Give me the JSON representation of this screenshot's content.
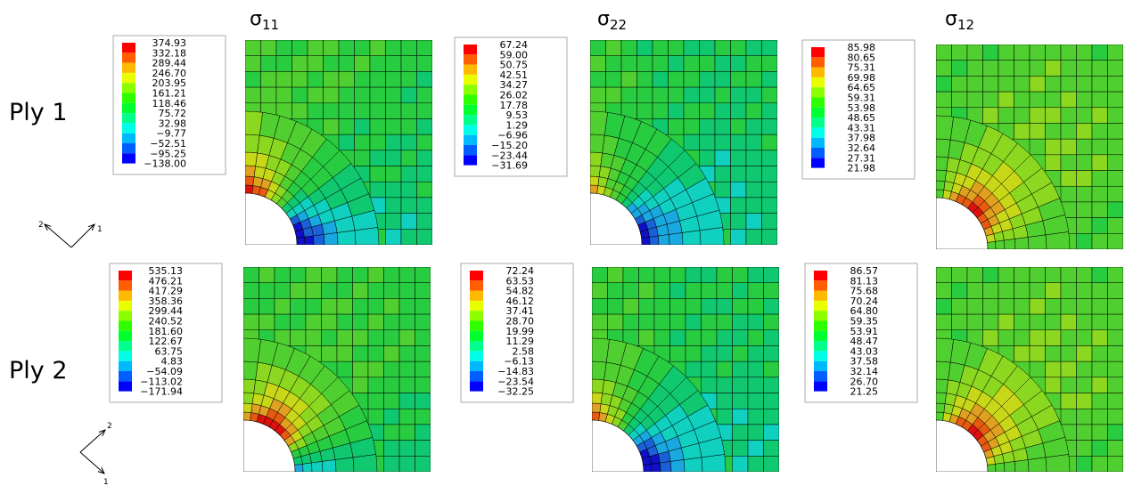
{
  "headers": [
    {
      "symbol": "σ",
      "subscript": "11"
    },
    {
      "symbol": "σ",
      "subscript": "22"
    },
    {
      "symbol": "σ",
      "subscript": "12"
    }
  ],
  "rows": [
    {
      "label": "Ply 1",
      "legends": [
        [
          "374.93",
          "332.18",
          "289.44",
          "246.70",
          "203.95",
          "161.21",
          "118.46",
          "75.72",
          "32.98",
          "−9.77",
          "−52.51",
          "−95.25",
          "−138.00"
        ],
        [
          "67.24",
          "59.00",
          "50.75",
          "42.51",
          "34.27",
          "26.02",
          "17.78",
          "9.53",
          "1.29",
          "−6.96",
          "−15.20",
          "−23.44",
          "−31.69"
        ],
        [
          "85.98",
          "80.65",
          "75.31",
          "69.98",
          "64.65",
          "59.31",
          "53.98",
          "48.65",
          "43.31",
          "37.98",
          "32.64",
          "27.31",
          "21.98"
        ]
      ],
      "triad": {
        "first": "1",
        "second": "2"
      }
    },
    {
      "label": "Ply 2",
      "legends": [
        [
          "535.13",
          "476.21",
          "417.29",
          "358.36",
          "299.44",
          "240.52",
          "181.60",
          "122.67",
          "63.75",
          "4.83",
          "−54.09",
          "−113.02",
          "−171.94"
        ],
        [
          "72.24",
          "63.53",
          "54.82",
          "46.12",
          "37.41",
          "28.70",
          "19.99",
          "11.29",
          "2.58",
          "−6.13",
          "−14.83",
          "−23.54",
          "−32.25"
        ],
        [
          "86.57",
          "81.13",
          "75.68",
          "70.24",
          "64.80",
          "59.35",
          "53.91",
          "48.47",
          "43.03",
          "37.58",
          "32.14",
          "26.70",
          "21.25"
        ]
      ],
      "triad": {
        "first": "1",
        "second": "2"
      }
    }
  ]
}
